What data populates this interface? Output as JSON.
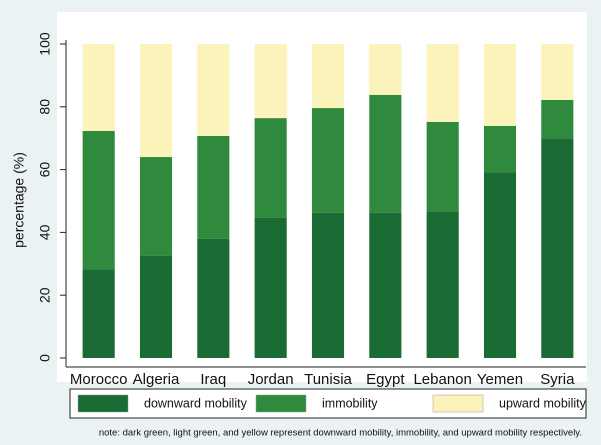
{
  "chart_data": {
    "type": "stacked_bar",
    "ylabel": "percentage (%)",
    "categories": [
      "Morocco",
      "Algeria",
      "Iraq",
      "Jordan",
      "Tunisia",
      "Egypt",
      "Lebanon",
      "Yemen",
      "Syria"
    ],
    "series": [
      {
        "name": "downward mobility",
        "color": "#1b6b34",
        "values": [
          28.3,
          32.5,
          38,
          44.6,
          46.2,
          46.2,
          46.5,
          59.2,
          70
        ]
      },
      {
        "name": "immobility",
        "color": "#2f8a3d",
        "values": [
          44,
          31.5,
          32.7,
          31.8,
          33.4,
          37.6,
          28.7,
          14.7,
          12.2
        ]
      },
      {
        "name": "upward mobility",
        "color": "#fbf3b9",
        "values": [
          27.7,
          36,
          29.3,
          23.6,
          20.4,
          16.2,
          24.8,
          26.1,
          17.8
        ]
      }
    ],
    "ylim": [
      0,
      100
    ],
    "yticks": [
      0,
      20,
      40,
      60,
      80,
      100
    ],
    "note": "note: dark green, light green, and yellow represent downward mobility, immobility, and upward mobility respectively."
  }
}
